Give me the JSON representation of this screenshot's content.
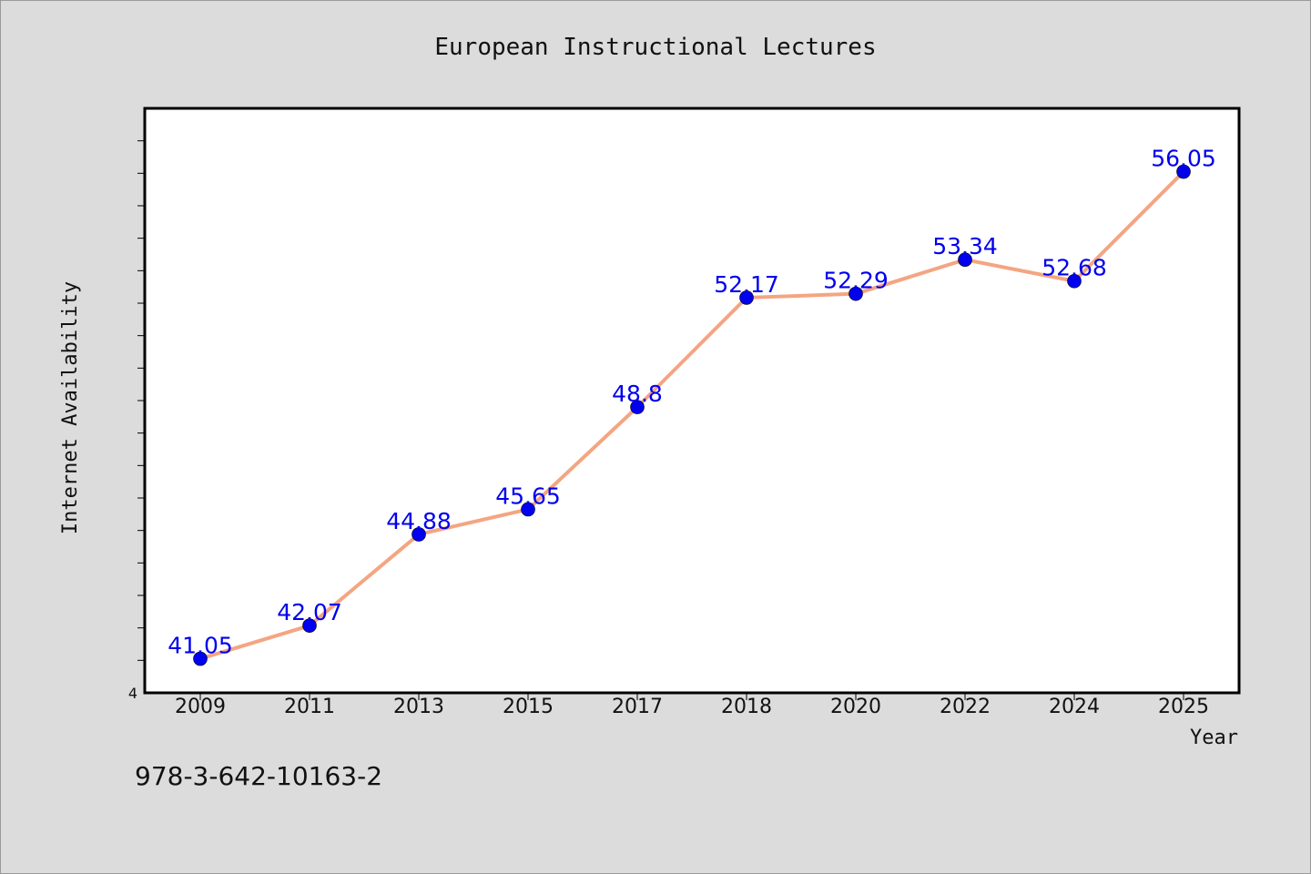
{
  "chart_data": {
    "type": "line",
    "title": "European Instructional Lectures",
    "xlabel": "Year",
    "ylabel": "Internet Availability",
    "categories": [
      "2009",
      "2011",
      "2013",
      "2015",
      "2017",
      "2018",
      "2020",
      "2022",
      "2024",
      "2025"
    ],
    "series": [
      {
        "values": [
          41.05,
          42.07,
          44.88,
          45.65,
          48.8,
          52.17,
          52.29,
          53.34,
          52.68,
          56.05
        ],
        "labels": [
          "41.05",
          "42.07",
          "44.88",
          "45.65",
          "48.8",
          "52.17",
          "52.29",
          "53.34",
          "52.68",
          "56.05"
        ],
        "line_color": "#f4a582",
        "marker_color": "#0000ee"
      }
    ],
    "ylim": [
      40.0,
      58.0
    ],
    "yticks_major": [
      "4"
    ],
    "y_minor_tick_step": 1,
    "grid": false,
    "legend": "none"
  },
  "footer": {
    "isbn": "978-3-642-10163-2"
  }
}
